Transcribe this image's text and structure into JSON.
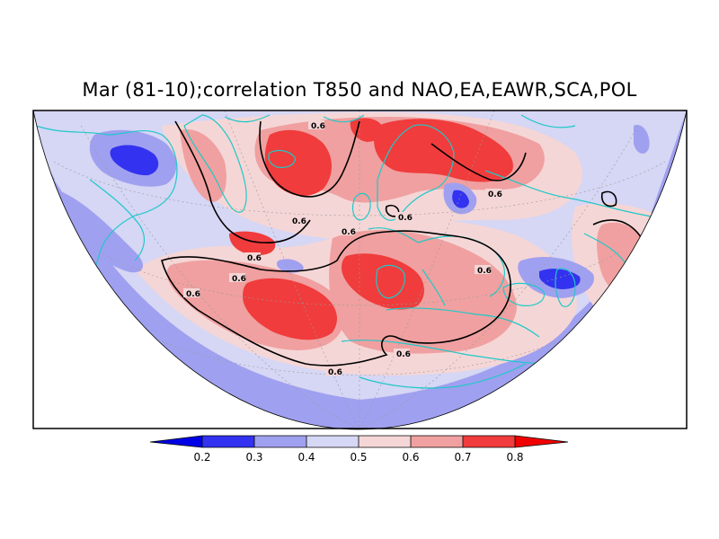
{
  "title": "Mar (81-10);correlation T850 and NAO,EA,EAWR,SCA,POL",
  "colors": {
    "lt02": "#0000e6",
    "c02_03": "#3232f0",
    "c03_04": "#a0a0f0",
    "c04_05": "#d6d6f5",
    "c05_06": "#f5d6d6",
    "c06_07": "#f0a0a0",
    "c07_08": "#f03c3c",
    "gt08": "#f00000",
    "coast": "#20c8c8",
    "contour": "#000000",
    "frame": "#000000"
  },
  "legend": {
    "ticks": [
      "0.2",
      "0.3",
      "0.4",
      "0.5",
      "0.6",
      "0.7",
      "0.8"
    ]
  },
  "contour_labels": [
    "0.6",
    "0.6",
    "0.6",
    "0.6",
    "0.6",
    "0.6",
    "0.6",
    "0.6",
    "0.6",
    "0.6",
    "0.6"
  ]
}
